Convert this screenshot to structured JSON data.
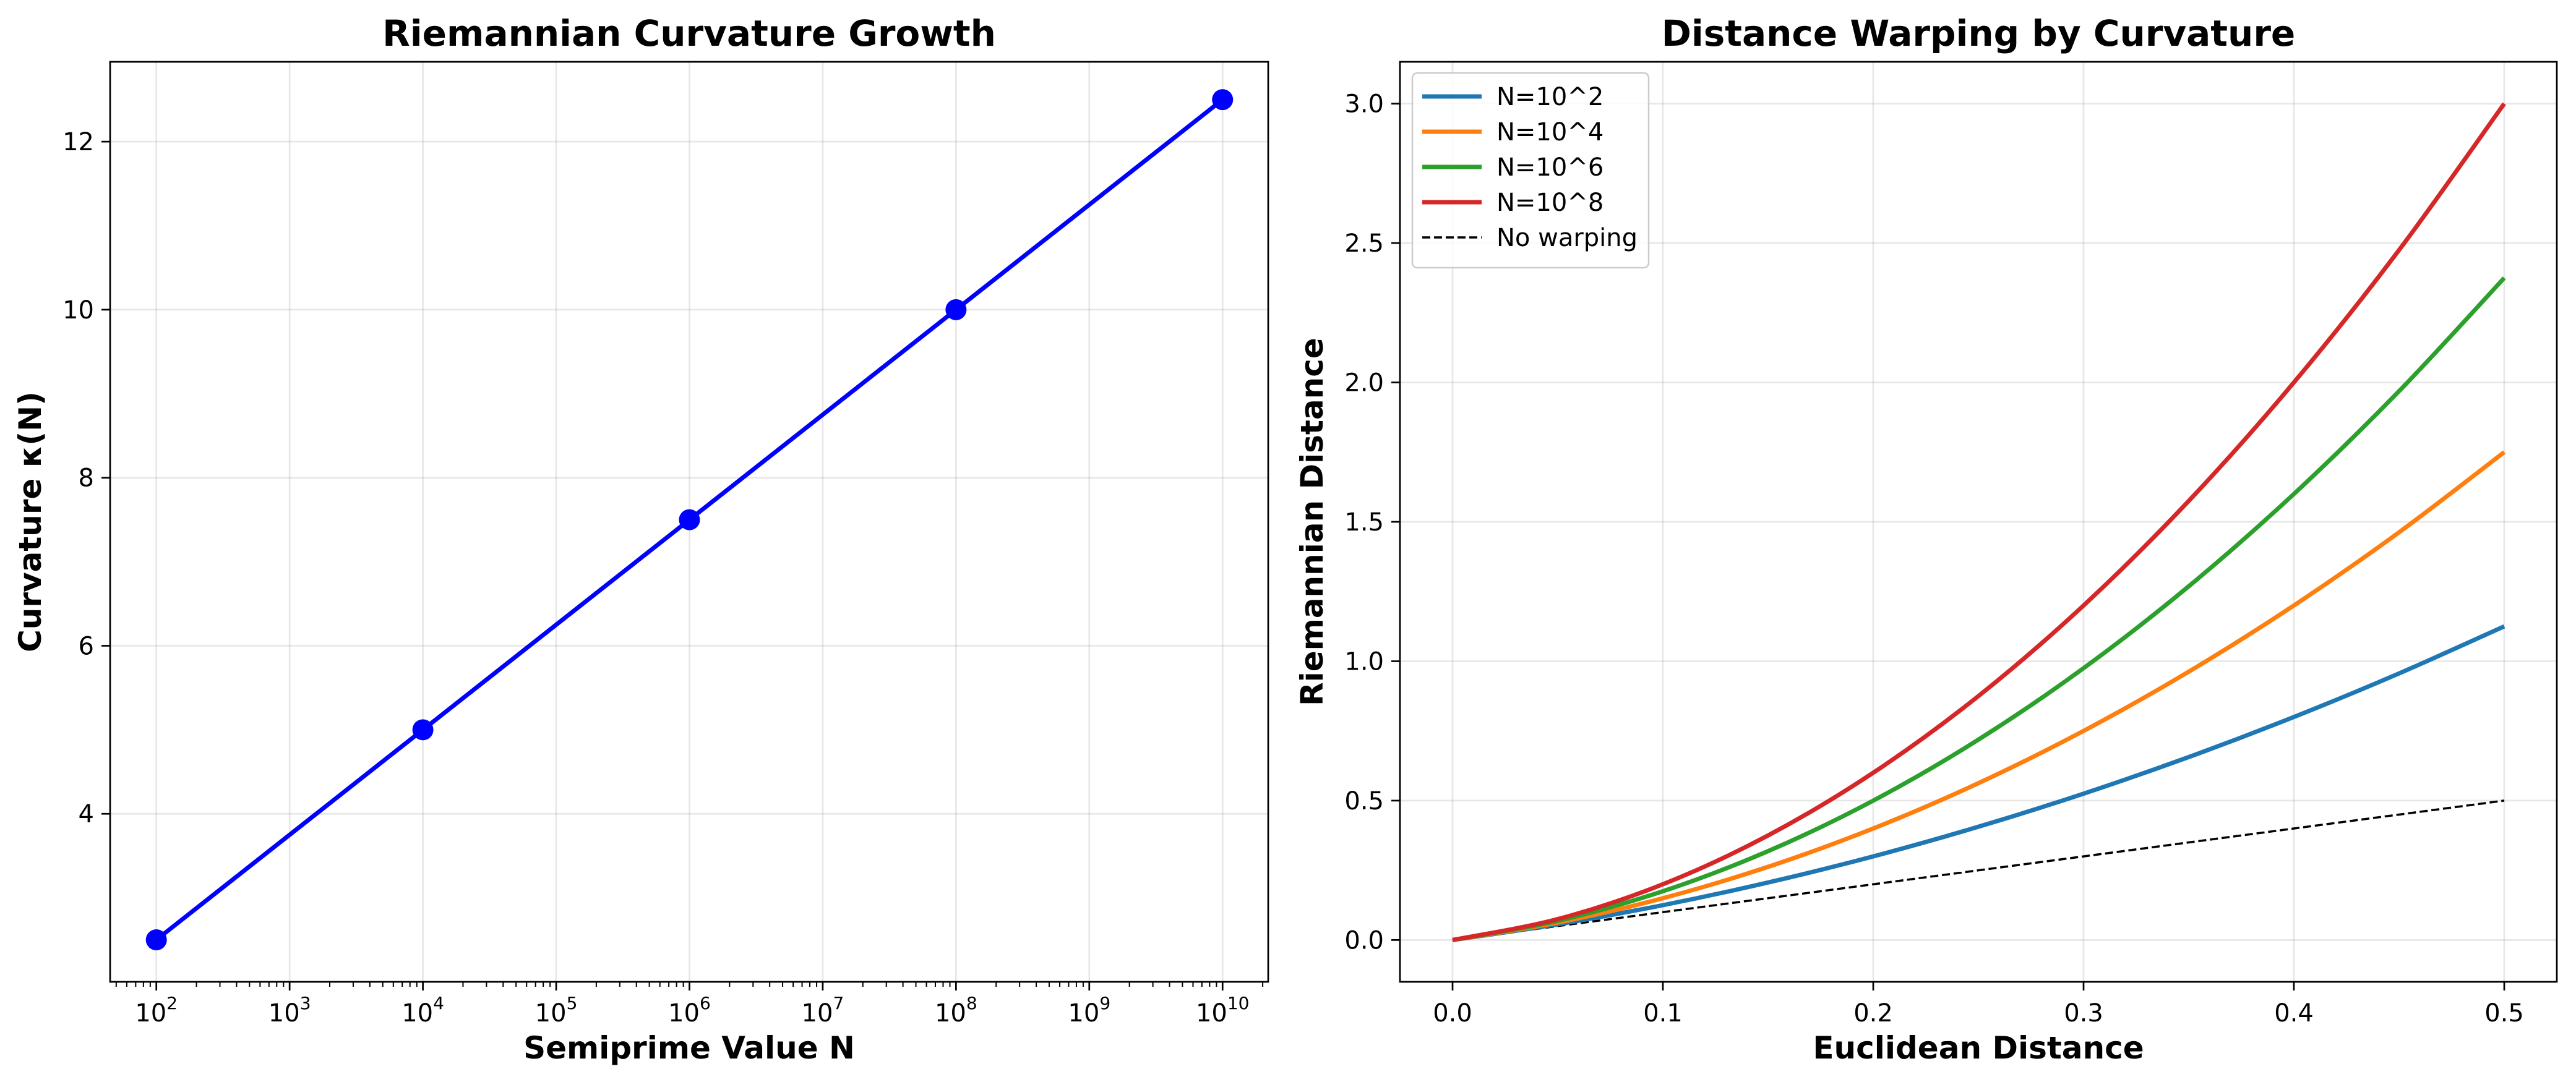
{
  "chart_data": [
    {
      "type": "line",
      "title": "Riemannian Curvature Growth",
      "xlabel": "Semiprime Value N",
      "ylabel": "Curvature κ(N)",
      "x_scale": "log",
      "xlim": [
        45.0,
        22000000000.0
      ],
      "ylim": [
        2.0,
        12.95
      ],
      "grid": true,
      "x_tick_labels": [
        {
          "base": "10",
          "exp": "2",
          "value": 100.0
        },
        {
          "base": "10",
          "exp": "3",
          "value": 1000.0
        },
        {
          "base": "10",
          "exp": "4",
          "value": 10000.0
        },
        {
          "base": "10",
          "exp": "5",
          "value": 100000.0
        },
        {
          "base": "10",
          "exp": "6",
          "value": 1000000.0
        },
        {
          "base": "10",
          "exp": "7",
          "value": 10000000.0
        },
        {
          "base": "10",
          "exp": "8",
          "value": 100000000.0
        },
        {
          "base": "10",
          "exp": "9",
          "value": 1000000000.0
        },
        {
          "base": "10",
          "exp": "10",
          "value": 10000000000.0
        }
      ],
      "y_ticks": [
        4,
        6,
        8,
        10,
        12
      ],
      "y_tick_labels": [
        "4",
        "6",
        "8",
        "10",
        "12"
      ],
      "series": [
        {
          "color": "#0000ff",
          "marker": "circle",
          "x": [
            100.0,
            10000.0,
            1000000.0,
            100000000.0,
            10000000000.0
          ],
          "y": [
            2.5,
            5.0,
            7.5,
            10.0,
            12.5
          ]
        }
      ]
    },
    {
      "type": "line",
      "title": "Distance Warping by Curvature",
      "xlabel": "Euclidean Distance",
      "ylabel": "Riemannian Distance",
      "xlim": [
        -0.025,
        0.525
      ],
      "ylim": [
        -0.15,
        3.15
      ],
      "grid": true,
      "legend": "top-left",
      "x_ticks": [
        0.0,
        0.1,
        0.2,
        0.3,
        0.4,
        0.5
      ],
      "x_tick_labels": [
        "0.0",
        "0.1",
        "0.2",
        "0.3",
        "0.4",
        "0.5"
      ],
      "y_ticks": [
        0.0,
        0.5,
        1.0,
        1.5,
        2.0,
        2.5,
        3.0
      ],
      "y_tick_labels": [
        "0.0",
        "0.5",
        "1.0",
        "1.5",
        "2.0",
        "2.5",
        "3.0"
      ],
      "x": [
        0.0,
        0.05,
        0.1,
        0.15,
        0.2,
        0.25,
        0.3,
        0.35,
        0.4,
        0.45,
        0.5
      ],
      "series": [
        {
          "name": "N=10^2",
          "color": "#1f77b4",
          "style": "solid",
          "y": [
            0.0,
            0.0563,
            0.125,
            0.2063,
            0.3,
            0.4063,
            0.525,
            0.6563,
            0.8,
            0.9563,
            1.125
          ]
        },
        {
          "name": "N=10^4",
          "color": "#ff7f0e",
          "style": "solid",
          "y": [
            0.0,
            0.0625,
            0.15,
            0.2625,
            0.4,
            0.5625,
            0.75,
            0.9625,
            1.2,
            1.4625,
            1.75
          ]
        },
        {
          "name": "N=10^6",
          "color": "#2ca02c",
          "style": "solid",
          "y": [
            0.0,
            0.0688,
            0.175,
            0.3188,
            0.5,
            0.7188,
            0.975,
            1.2688,
            1.6,
            1.9688,
            2.375
          ]
        },
        {
          "name": "N=10^8",
          "color": "#d62728",
          "style": "solid",
          "y": [
            0.0,
            0.075,
            0.2,
            0.375,
            0.6,
            0.875,
            1.2,
            1.575,
            2.0,
            2.475,
            3.0
          ]
        },
        {
          "name": "No warping",
          "color": "#000000",
          "style": "dashed",
          "y": [
            0.0,
            0.05,
            0.1,
            0.15,
            0.2,
            0.25,
            0.3,
            0.35,
            0.4,
            0.45,
            0.5
          ]
        }
      ]
    }
  ]
}
